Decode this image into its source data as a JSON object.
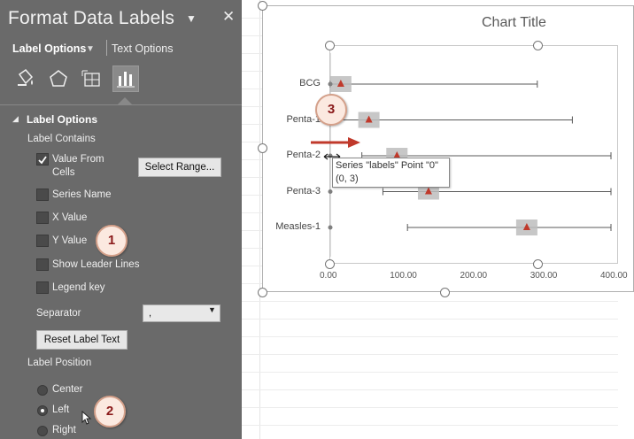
{
  "pane": {
    "title": "Format Data Labels",
    "menu_glyph": "▼",
    "close_glyph": "✕",
    "tab_label_options": "Label Options",
    "tab_text_options": "Text Options",
    "section_label_options": "Label Options",
    "label_contains": "Label Contains",
    "checkboxes": [
      {
        "label_line1": "Value From",
        "label_line2": "Cells",
        "checked": true
      },
      {
        "label": "Series Name",
        "checked": false
      },
      {
        "label": "X Value",
        "checked": false
      },
      {
        "label": "Y Value",
        "checked": false
      },
      {
        "label": "Show Leader Lines",
        "checked": false
      },
      {
        "label": "Legend key",
        "checked": false
      }
    ],
    "select_range_button": "Select Range...",
    "separator_label": "Separator",
    "separator_value": ",",
    "reset_button": "Reset Label Text",
    "label_position": "Label Position",
    "radios": [
      {
        "label": "Center",
        "selected": false
      },
      {
        "label": "Left",
        "selected": true
      },
      {
        "label": "Right",
        "selected": false
      }
    ]
  },
  "callouts": {
    "c1": "1",
    "c2": "2",
    "c3": "3"
  },
  "chart": {
    "title": "Chart Title",
    "tooltip_line1": "Series \"labels\" Point \"0\"",
    "tooltip_line2": "(0, 3)"
  },
  "chart_data": {
    "type": "scatter",
    "title": "Chart Title",
    "categories": [
      "BCG",
      "Penta-1",
      "Penta-2",
      "Penta-3",
      "Measles-1"
    ],
    "x_ticks": [
      "0.00",
      "100.00",
      "200.00",
      "300.00",
      "400.00"
    ],
    "xlim": [
      0,
      400
    ],
    "series": [
      {
        "values": [
          15,
          55,
          95,
          140,
          280
        ],
        "low": [
          0,
          0,
          45,
          75,
          110
        ],
        "high": [
          295,
          345,
          400,
          400,
          400
        ]
      }
    ],
    "accent_color": "#c0392b",
    "label_box_color": "#bdbdbd"
  }
}
